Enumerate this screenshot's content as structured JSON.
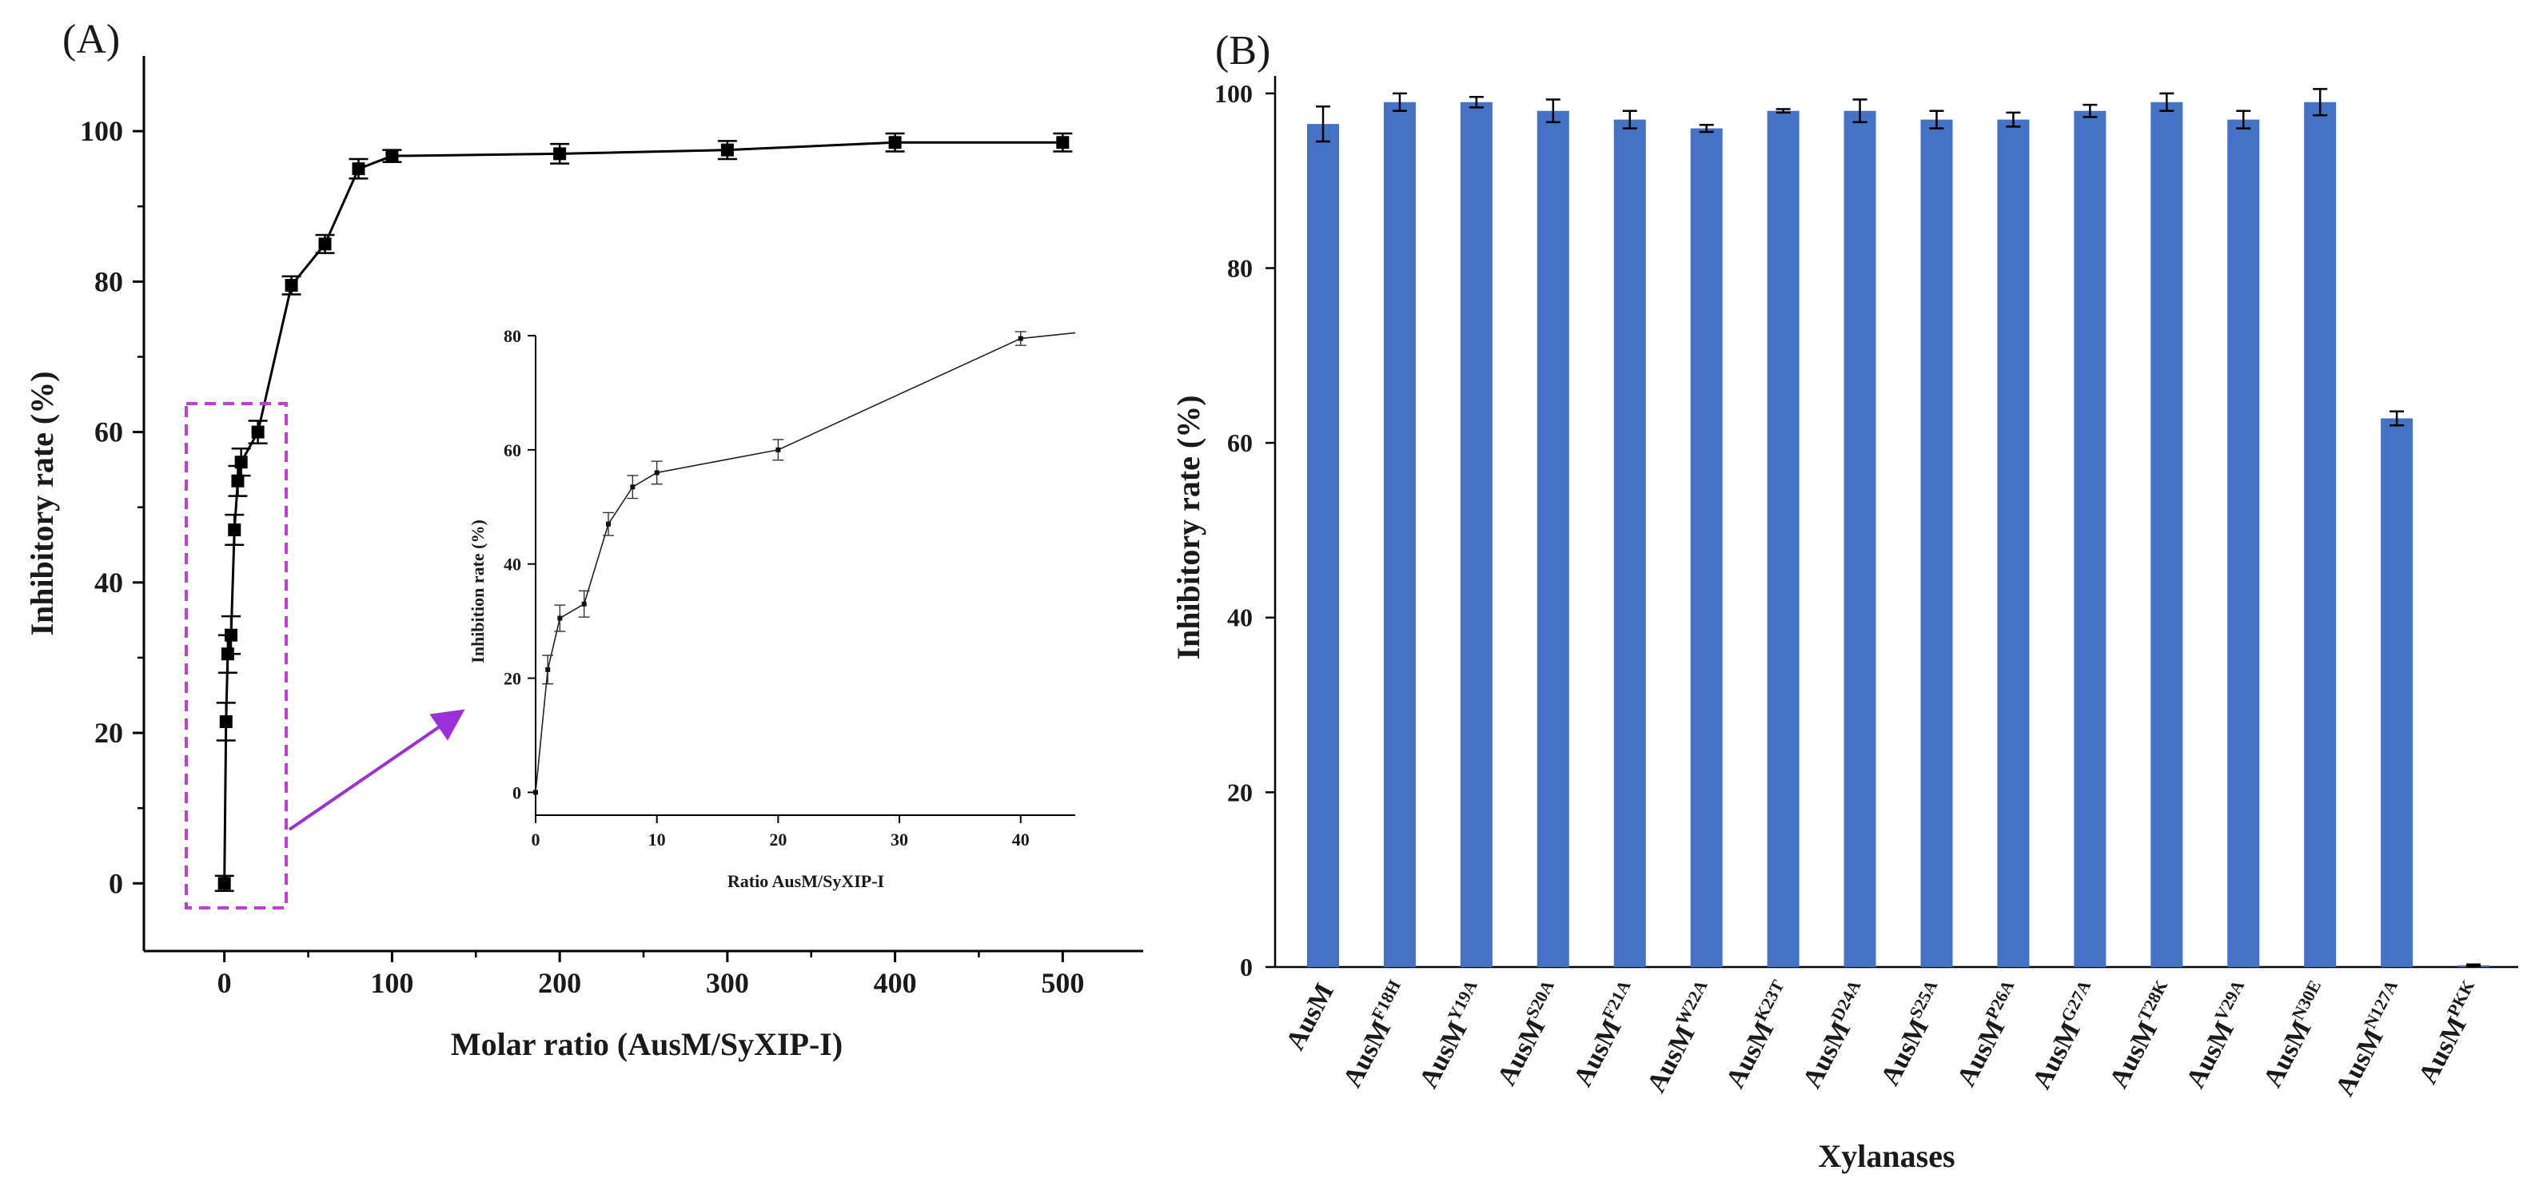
{
  "panel_labels": {
    "a": "(A)",
    "b": "(B)"
  },
  "chart_data": [
    {
      "id": "A-main",
      "type": "line",
      "title": "",
      "xlabel": "Molar ratio (AusM/SyXIP-I)",
      "ylabel": "Inhibitory rate (%)",
      "xlim": [
        -48,
        548
      ],
      "ylim": [
        -9,
        110
      ],
      "xticks": [
        0,
        100,
        200,
        300,
        400,
        500
      ],
      "yticks": [
        0,
        20,
        40,
        60,
        80,
        100
      ],
      "grid": false,
      "series": [
        {
          "name": "Inhibitory rate",
          "x": [
            0,
            1,
            2,
            4,
            6,
            8,
            10,
            20,
            40,
            60,
            80,
            100,
            200,
            300,
            400,
            500
          ],
          "y": [
            0,
            21.5,
            30.5,
            33,
            47,
            53.5,
            56,
            60,
            79.5,
            85,
            95,
            96.7,
            97,
            97.5,
            98.5,
            98.5
          ],
          "err": [
            1,
            2.5,
            2.5,
            2.5,
            2,
            2,
            1.8,
            1.5,
            1.2,
            1.2,
            1.3,
            0.8,
            1.3,
            1.2,
            1.2,
            1.2
          ]
        }
      ],
      "annotations": [
        "dashed magenta box around ratio 0-20 region",
        "purple arrow pointing to inset"
      ]
    },
    {
      "id": "A-inset",
      "type": "line",
      "title": "",
      "xlabel": "Ratio AusM/SyXIP-I",
      "ylabel": "Inhibition rate (%)",
      "xlim": [
        0,
        44.5
      ],
      "ylim": [
        -4,
        80
      ],
      "xticks": [
        0,
        10,
        20,
        30,
        40
      ],
      "yticks": [
        0,
        20,
        40,
        60,
        80
      ],
      "grid": false,
      "series": [
        {
          "name": "Inhibition rate",
          "x": [
            0,
            1,
            2,
            4,
            6,
            8,
            10,
            20,
            40,
            44.5
          ],
          "y": [
            0,
            21.5,
            30.5,
            33,
            47,
            53.5,
            56,
            60,
            79.5,
            80.5
          ],
          "err": [
            0,
            2.5,
            2.3,
            2.3,
            2,
            2,
            2,
            1.8,
            1.2,
            0
          ]
        }
      ]
    },
    {
      "id": "B",
      "type": "bar",
      "title": "",
      "xlabel": "Xylanases",
      "ylabel": "Inhibitory rate (%)",
      "ylim": [
        0,
        102
      ],
      "yticks": [
        0,
        20,
        40,
        60,
        80,
        100
      ],
      "grid": false,
      "bar_color": "#4472c4",
      "categories": [
        {
          "base": "AusM",
          "sup": ""
        },
        {
          "base": "AusM",
          "sup": "F18H"
        },
        {
          "base": "AusM",
          "sup": "Y19A"
        },
        {
          "base": "AusM",
          "sup": "S20A"
        },
        {
          "base": "AusM",
          "sup": "F21A"
        },
        {
          "base": "AusM",
          "sup": "W22A"
        },
        {
          "base": "AusM",
          "sup": "K23T"
        },
        {
          "base": "AusM",
          "sup": "D24A"
        },
        {
          "base": "AusM",
          "sup": "S25A"
        },
        {
          "base": "AusM",
          "sup": "P26A"
        },
        {
          "base": "AusM",
          "sup": "G27A"
        },
        {
          "base": "AusM",
          "sup": "T28K"
        },
        {
          "base": "AusM",
          "sup": "V29A"
        },
        {
          "base": "AusM",
          "sup": "N30E"
        },
        {
          "base": "AusM",
          "sup": "N127A"
        },
        {
          "base": "AusM",
          "sup": "PKK"
        }
      ],
      "values": [
        96.5,
        99,
        99,
        98,
        97,
        96,
        98,
        98,
        97,
        97,
        98,
        99,
        97,
        99,
        62.8,
        0.2
      ],
      "errors": [
        2,
        1,
        0.6,
        1.3,
        1,
        0.4,
        0.2,
        1.3,
        1,
        0.8,
        0.7,
        1,
        1,
        1.5,
        0.8,
        0.1
      ]
    }
  ]
}
